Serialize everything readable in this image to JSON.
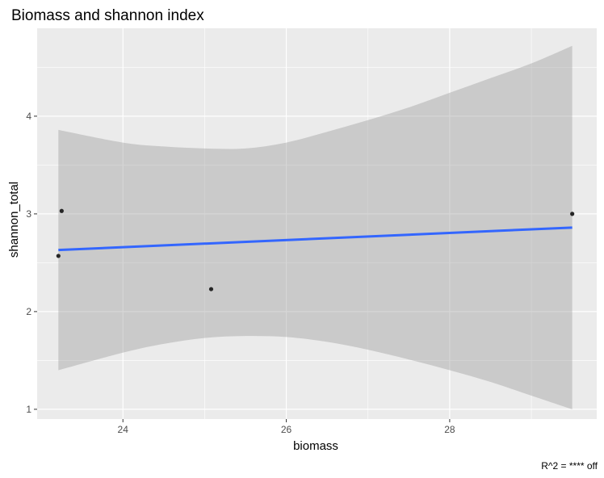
{
  "chart_data": {
    "type": "scatter",
    "title": "Biomass and shannon index",
    "xlabel": "biomass",
    "ylabel": "shannon_total",
    "caption": "R^2 = **** off",
    "xlim": [
      22.95,
      29.8
    ],
    "ylim": [
      0.9,
      4.9
    ],
    "x_ticks": [
      24,
      26,
      28
    ],
    "y_ticks": [
      1,
      2,
      3,
      4
    ],
    "grid": true,
    "points": [
      {
        "x": 23.21,
        "y": 2.57
      },
      {
        "x": 23.25,
        "y": 3.03
      },
      {
        "x": 25.08,
        "y": 2.23
      },
      {
        "x": 29.5,
        "y": 3.0
      }
    ],
    "trend_line": {
      "method": "lm",
      "x": [
        23.21,
        29.5
      ],
      "y": [
        2.63,
        2.86
      ]
    },
    "confidence_band": {
      "x": [
        23.21,
        24.0,
        24.5,
        25.0,
        25.5,
        26.0,
        26.5,
        27.0,
        27.5,
        28.0,
        28.5,
        29.0,
        29.5
      ],
      "lower": [
        1.4,
        1.58,
        1.67,
        1.73,
        1.75,
        1.74,
        1.69,
        1.61,
        1.51,
        1.4,
        1.28,
        1.14,
        1.0
      ],
      "upper": [
        3.86,
        3.73,
        3.69,
        3.67,
        3.67,
        3.73,
        3.84,
        3.96,
        4.09,
        4.24,
        4.39,
        4.54,
        4.72
      ]
    },
    "colors": {
      "panel": "#EBEBEB",
      "grid": "#FFFFFF",
      "band": "#CCCCCC",
      "trend": "#3366FF",
      "points": "#262626",
      "ticks": "#4D4D4D"
    }
  }
}
